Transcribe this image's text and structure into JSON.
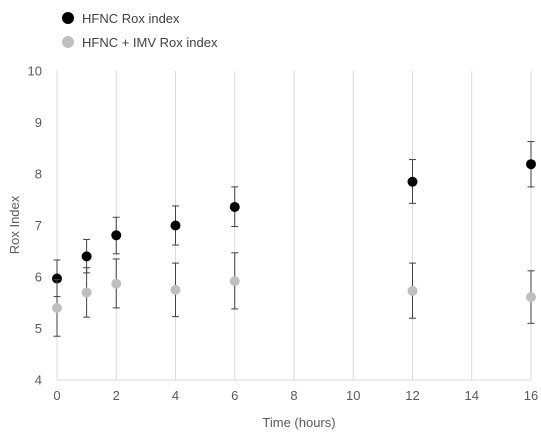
{
  "chart_data": {
    "type": "scatter",
    "title": "",
    "xlabel": "Time (hours)",
    "ylabel": "Rox Index",
    "xlim": [
      0,
      16
    ],
    "ylim": [
      4,
      10
    ],
    "x_ticks": [
      "0",
      "2",
      "4",
      "6",
      "8",
      "10",
      "12",
      "14",
      "16"
    ],
    "y_ticks": [
      "4",
      "5",
      "6",
      "7",
      "8",
      "9",
      "10"
    ],
    "grid": "vertical",
    "legend_position": "top-left",
    "series": [
      {
        "name": "HFNC Rox index",
        "color": "#000000",
        "points": [
          {
            "x": 0,
            "y": 5.97,
            "err_low": 5.62,
            "err_high": 6.33
          },
          {
            "x": 1,
            "y": 6.4,
            "err_low": 6.08,
            "err_high": 6.73
          },
          {
            "x": 2,
            "y": 6.81,
            "err_low": 6.45,
            "err_high": 7.16
          },
          {
            "x": 4,
            "y": 7.0,
            "err_low": 6.62,
            "err_high": 7.38
          },
          {
            "x": 6,
            "y": 7.36,
            "err_low": 6.98,
            "err_high": 7.75
          },
          {
            "x": 12,
            "y": 7.85,
            "err_low": 7.43,
            "err_high": 8.28
          },
          {
            "x": 16,
            "y": 8.19,
            "err_low": 7.75,
            "err_high": 8.63
          }
        ]
      },
      {
        "name": "HFNC + IMV Rox index",
        "color": "#bfbfbf",
        "points": [
          {
            "x": 0,
            "y": 5.4,
            "err_low": 4.85,
            "err_high": 5.95
          },
          {
            "x": 1,
            "y": 5.7,
            "err_low": 5.22,
            "err_high": 6.18
          },
          {
            "x": 2,
            "y": 5.87,
            "err_low": 5.4,
            "err_high": 6.35
          },
          {
            "x": 4,
            "y": 5.75,
            "err_low": 5.23,
            "err_high": 6.27
          },
          {
            "x": 6,
            "y": 5.92,
            "err_low": 5.38,
            "err_high": 6.47
          },
          {
            "x": 12,
            "y": 5.73,
            "err_low": 5.2,
            "err_high": 6.27
          },
          {
            "x": 16,
            "y": 5.61,
            "err_low": 5.1,
            "err_high": 6.12
          }
        ]
      }
    ]
  }
}
